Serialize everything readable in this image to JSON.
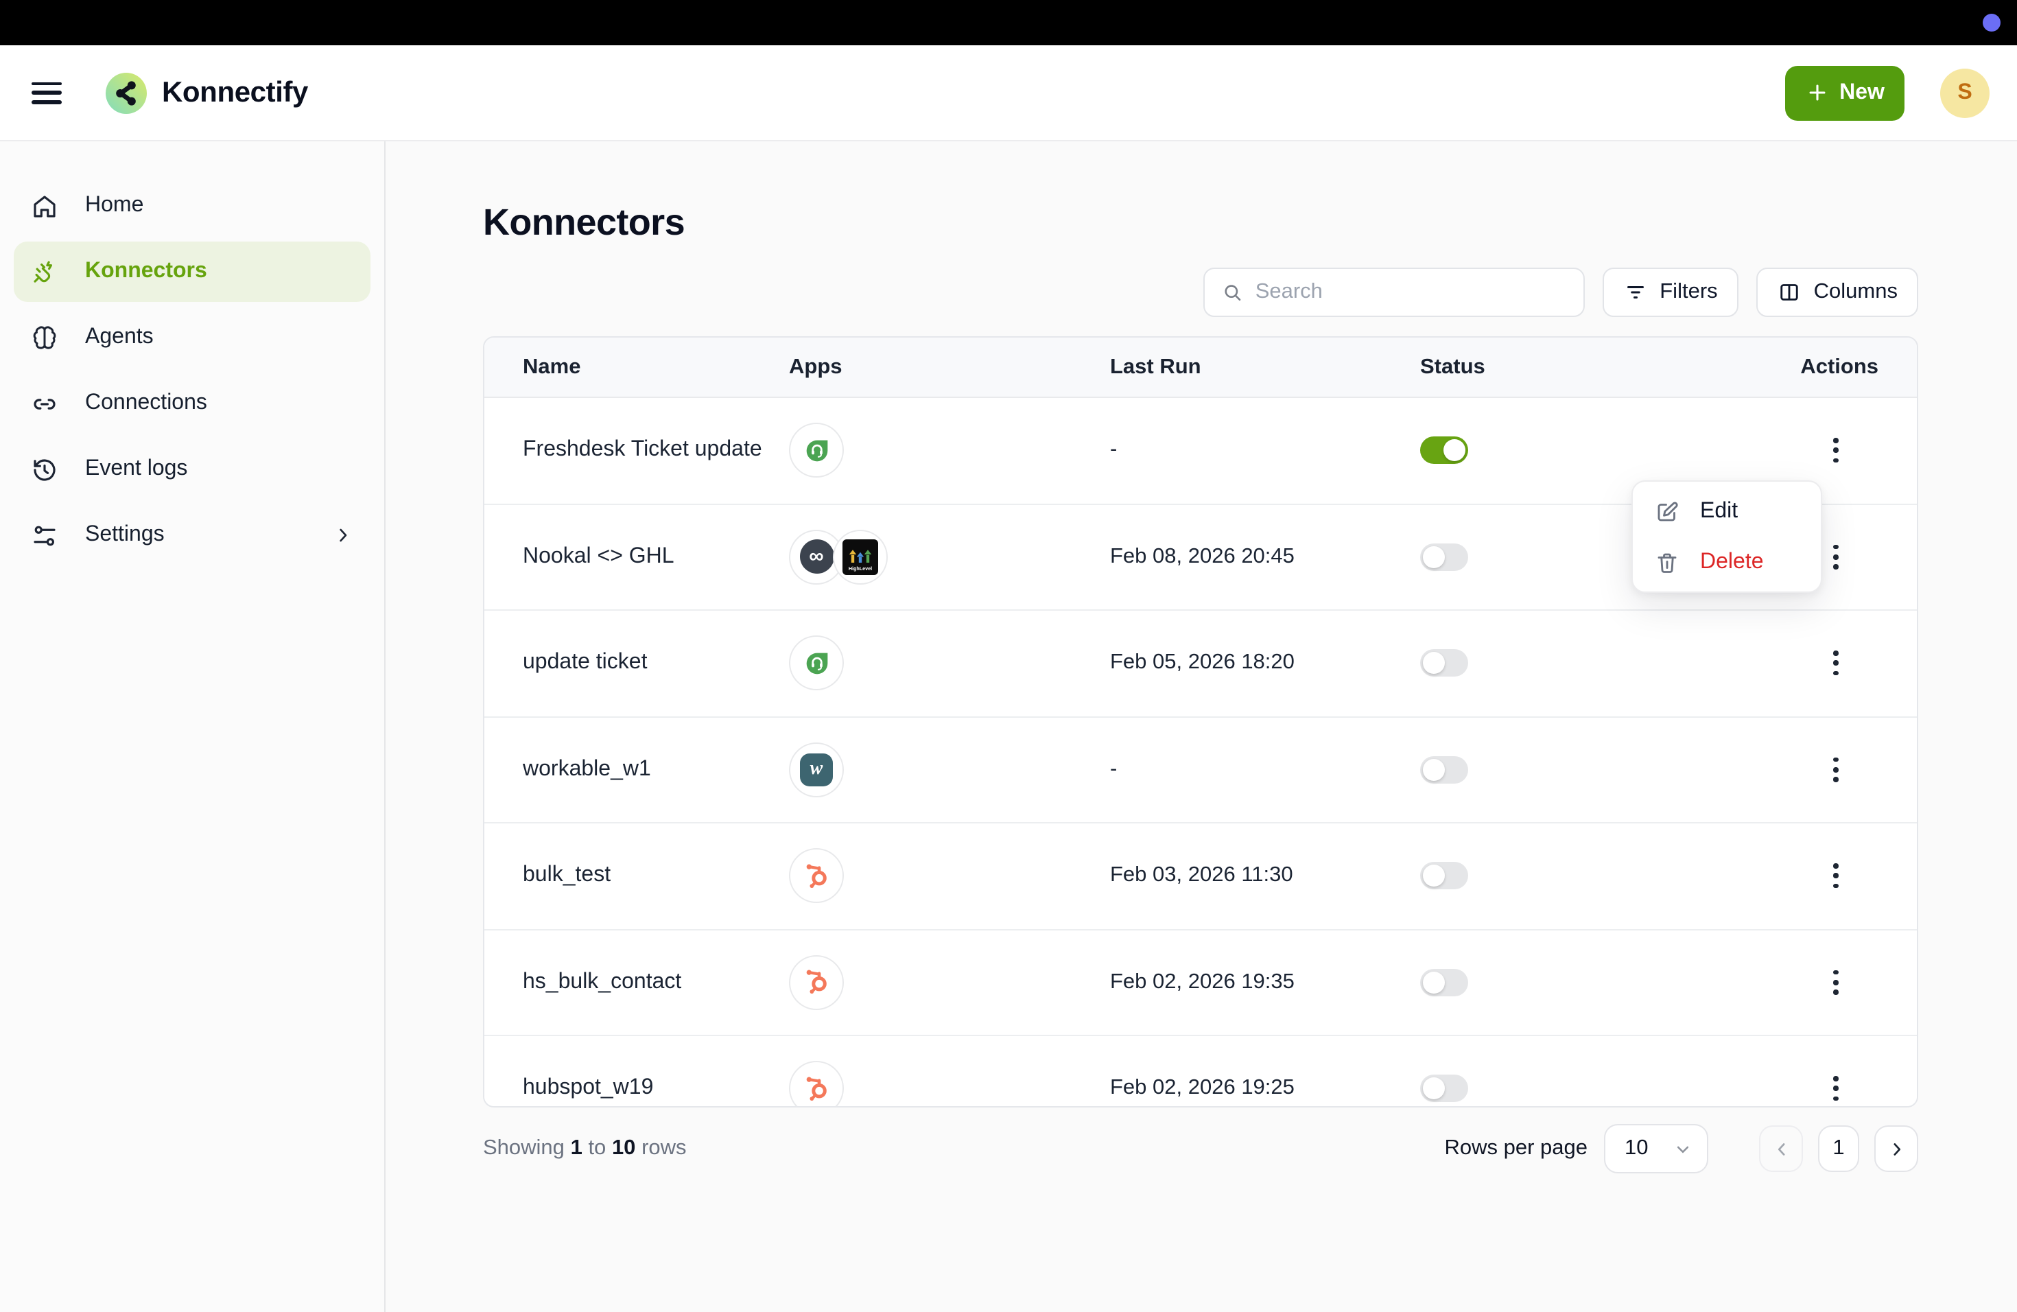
{
  "topbar": {
    "recording_dot_color": "#6b6ef5"
  },
  "header": {
    "brand": "Konnectify",
    "new_button_label": "New",
    "avatar_initial": "S"
  },
  "sidebar": {
    "items": [
      {
        "id": "home",
        "label": "Home",
        "icon": "home-icon",
        "active": false
      },
      {
        "id": "konnectors",
        "label": "Konnectors",
        "icon": "plug-zap-icon",
        "active": true
      },
      {
        "id": "agents",
        "label": "Agents",
        "icon": "brain-icon",
        "active": false
      },
      {
        "id": "connections",
        "label": "Connections",
        "icon": "link-icon",
        "active": false
      },
      {
        "id": "eventlogs",
        "label": "Event logs",
        "icon": "history-icon",
        "active": false
      },
      {
        "id": "settings",
        "label": "Settings",
        "icon": "sliders-icon",
        "active": false,
        "has_chevron": true
      }
    ]
  },
  "page": {
    "title": "Konnectors"
  },
  "controls": {
    "search_placeholder": "Search",
    "filters_label": "Filters",
    "columns_label": "Columns"
  },
  "table": {
    "columns": [
      "Name",
      "Apps",
      "Last Run",
      "Status",
      "Actions"
    ],
    "rows": [
      {
        "name": "Freshdesk Ticket update",
        "apps": [
          "freshdesk"
        ],
        "last_run": "-",
        "status_on": true
      },
      {
        "name": "Nookal <> GHL",
        "apps": [
          "nookal",
          "highlevel"
        ],
        "last_run": "Feb 08, 2026 20:45",
        "status_on": false
      },
      {
        "name": "update ticket",
        "apps": [
          "freshdesk"
        ],
        "last_run": "Feb 05, 2026 18:20",
        "status_on": false
      },
      {
        "name": "workable_w1",
        "apps": [
          "workable"
        ],
        "last_run": "-",
        "status_on": false
      },
      {
        "name": "bulk_test",
        "apps": [
          "hubspot"
        ],
        "last_run": "Feb 03, 2026 11:30",
        "status_on": false
      },
      {
        "name": "hs_bulk_contact",
        "apps": [
          "hubspot"
        ],
        "last_run": "Feb 02, 2026 19:35",
        "status_on": false
      },
      {
        "name": "hubspot_w19",
        "apps": [
          "hubspot"
        ],
        "last_run": "Feb 02, 2026 19:25",
        "status_on": false
      }
    ],
    "app_icon_names": {
      "freshdesk": "freshdesk-app-icon",
      "nookal": "nookal-app-icon",
      "highlevel": "highlevel-app-icon",
      "workable": "workable-app-icon",
      "hubspot": "hubspot-app-icon"
    },
    "nookal_glyph": "∞",
    "workable_glyph": "w",
    "highlevel_text": "HighLevel"
  },
  "context_menu": {
    "items": [
      {
        "label": "Edit",
        "icon": "edit-icon",
        "danger": false
      },
      {
        "label": "Delete",
        "icon": "trash-icon",
        "danger": true
      }
    ]
  },
  "footer": {
    "showing_prefix": "Showing",
    "from": "1",
    "to_word": "to",
    "to": "10",
    "suffix": "rows",
    "rows_per_page_label": "Rows per page",
    "rows_per_page_value": "10",
    "current_page": "1"
  },
  "colors": {
    "accent_green": "#549c0e",
    "active_nav_green": "#66a30d",
    "toggle_on_green": "#68a412",
    "delete_red": "#dc2626",
    "avatar_bg": "#f6e7a2",
    "avatar_text": "#c06c10"
  }
}
